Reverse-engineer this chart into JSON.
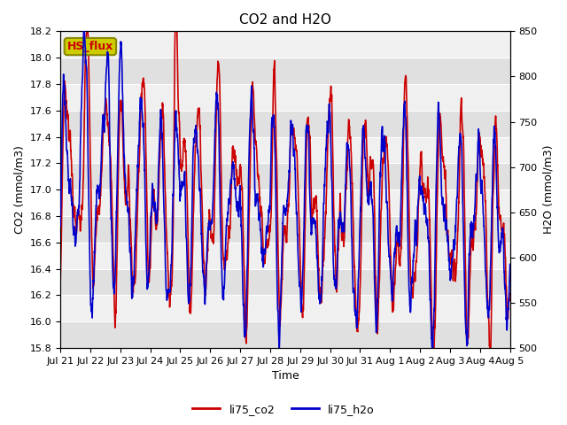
{
  "title": "CO2 and H2O",
  "xlabel": "Time",
  "ylabel_left": "CO2 (mmol/m3)",
  "ylabel_right": "H2O (mmol/m3)",
  "ylim_left": [
    15.8,
    18.2
  ],
  "ylim_right": [
    500,
    850
  ],
  "yticks_left": [
    15.8,
    16.0,
    16.2,
    16.4,
    16.6,
    16.8,
    17.0,
    17.2,
    17.4,
    17.6,
    17.8,
    18.0,
    18.2
  ],
  "yticks_right": [
    500,
    550,
    600,
    650,
    700,
    750,
    800,
    850
  ],
  "xtick_labels": [
    "Jul 21",
    "Jul 22",
    "Jul 23",
    "Jul 24",
    "Jul 25",
    "Jul 26",
    "Jul 27",
    "Jul 28",
    "Jul 29",
    "Jul 30",
    "Jul 31",
    "Aug 1",
    "Aug 2",
    "Aug 3",
    "Aug 4",
    "Aug 5"
  ],
  "color_co2": "#cc0000",
  "color_h2o": "#0000cc",
  "annotation_text": "HS_flux",
  "annotation_bg": "#cccc00",
  "annotation_border": "#888800",
  "background_color": "#e0e0e0",
  "background_color2": "#f0f0f0",
  "legend_co2": "li75_co2",
  "legend_h2o": "li75_h2o",
  "linewidth": 1.2,
  "title_fontsize": 11,
  "label_fontsize": 9,
  "tick_fontsize": 8,
  "legend_fontsize": 9
}
